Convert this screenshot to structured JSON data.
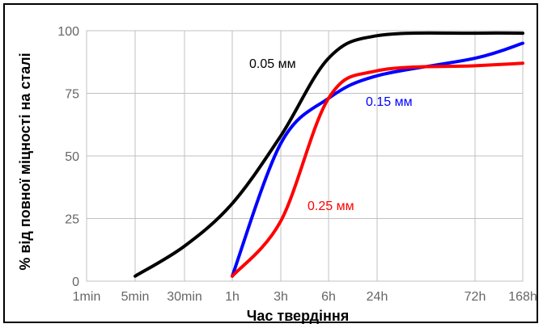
{
  "chart_data": {
    "type": "line",
    "title": "",
    "xlabel": "Час твердіння",
    "ylabel": "% від повної міцності на сталі",
    "x_ticks": [
      "1min",
      "5min",
      "30min",
      "1h",
      "3h",
      "6h",
      "24h",
      "72h",
      "168h"
    ],
    "y_ticks": [
      "0",
      "25",
      "50",
      "75",
      "100"
    ],
    "ylim": [
      0,
      100
    ],
    "grid": true,
    "series": [
      {
        "name": "0.05 мм",
        "color": "#000000",
        "points": [
          [
            "5min",
            2
          ],
          [
            "30min",
            14
          ],
          [
            "1h",
            31
          ],
          [
            "3h",
            58
          ],
          [
            "6h",
            89
          ],
          [
            "24h",
            98
          ],
          [
            "72h",
            99
          ],
          [
            "168h",
            99
          ]
        ]
      },
      {
        "name": "0.15 мм",
        "color": "#0000ff",
        "points": [
          [
            "1h",
            2
          ],
          [
            "3h",
            55
          ],
          [
            "6h",
            73
          ],
          [
            "24h",
            82
          ],
          [
            "72h",
            89
          ],
          [
            "168h",
            95
          ]
        ]
      },
      {
        "name": "0.25 мм",
        "color": "#ff0000",
        "points": [
          [
            "1h",
            2
          ],
          [
            "3h",
            24
          ],
          [
            "6h",
            73
          ],
          [
            "24h",
            84
          ],
          [
            "72h",
            86
          ],
          [
            "168h",
            87
          ]
        ]
      }
    ]
  }
}
